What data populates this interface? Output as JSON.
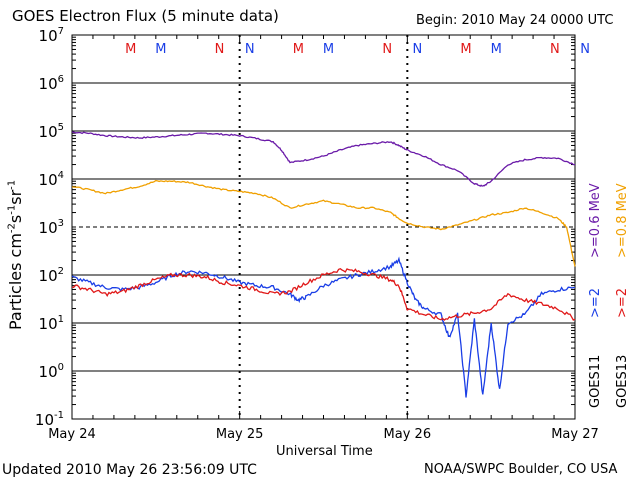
{
  "header": {
    "title": "GOES Electron Flux (5 minute data)",
    "begin": "Begin: 2010 May 24 0000 UTC"
  },
  "footer": {
    "updated": "Updated 2010 May 26 23:56:09 UTC",
    "credit": "NOAA/SWPC Boulder, CO USA"
  },
  "colors": {
    "goes11_e2": "#1a3ee6",
    "goes13_e2": "#e01818",
    "goes11_e06": "#6a1aa8",
    "goes13_e08": "#f0a000",
    "marker_m": "#e01818",
    "marker_n": "#1a3ee6"
  },
  "markers": [
    {
      "day": 0.35,
      "label": "M",
      "color": "marker_m"
    },
    {
      "day": 0.53,
      "label": "M",
      "color": "marker_n"
    },
    {
      "day": 0.88,
      "label": "N",
      "color": "marker_m"
    },
    {
      "day": 1.06,
      "label": "N",
      "color": "marker_n"
    },
    {
      "day": 1.35,
      "label": "M",
      "color": "marker_m"
    },
    {
      "day": 1.53,
      "label": "M",
      "color": "marker_n"
    },
    {
      "day": 1.88,
      "label": "N",
      "color": "marker_m"
    },
    {
      "day": 2.06,
      "label": "N",
      "color": "marker_n"
    },
    {
      "day": 2.35,
      "label": "M",
      "color": "marker_m"
    },
    {
      "day": 2.53,
      "label": "M",
      "color": "marker_n"
    },
    {
      "day": 2.88,
      "label": "N",
      "color": "marker_m"
    },
    {
      "day": 3.06,
      "label": "N",
      "color": "marker_n"
    }
  ],
  "chart_data": {
    "type": "line",
    "title": "GOES Electron Flux (5 minute data)",
    "xlabel": "Universal Time",
    "ylabel": "Particles cm-2 s-1 sr-1",
    "ylabel_parts": {
      "base": "Particles cm",
      "e1": "-2",
      "s": "s",
      "e2": "-1",
      "sr": "sr",
      "e3": "-1"
    },
    "y_scale": "log",
    "ylim": [
      0.1,
      10000000
    ],
    "xlim": [
      0,
      3
    ],
    "x_ticks": [
      {
        "x": 0,
        "label": "May 24"
      },
      {
        "x": 1,
        "label": "May 25"
      },
      {
        "x": 2,
        "label": "May 26"
      },
      {
        "x": 3,
        "label": "May 27"
      }
    ],
    "y_ticks": [
      {
        "exp": 7,
        "base": "10",
        "sup": "7"
      },
      {
        "exp": 6,
        "base": "10",
        "sup": "6"
      },
      {
        "exp": 5,
        "base": "10",
        "sup": "5"
      },
      {
        "exp": 4,
        "base": "10",
        "sup": "4"
      },
      {
        "exp": 3,
        "base": "10",
        "sup": "3"
      },
      {
        "exp": 2,
        "base": "10",
        "sup": "2"
      },
      {
        "exp": 1,
        "base": "10",
        "sup": "1"
      },
      {
        "exp": 0,
        "base": "10",
        "sup": "0"
      },
      {
        "exp": -1,
        "base": "10",
        "sup": "-1"
      }
    ],
    "grid": "horizontal solid at decades; dashed at 10^3",
    "legend_right": [
      {
        "text": "GOES11",
        "color": "#000000"
      },
      {
        "text": "GOES13",
        "color": "#000000"
      },
      {
        "text": ">=2",
        "color": "#1a3ee6"
      },
      {
        "text": ">=2",
        "color": "#e01818"
      },
      {
        "text": ">=0.6 MeV",
        "color": "#6a1aa8"
      },
      {
        "text": ">=0.8 MeV",
        "color": "#f0a000"
      }
    ],
    "series": [
      {
        "name": "GOES11 >=0.6 MeV",
        "color": "goes11_e06",
        "x": [
          0,
          0.1,
          0.2,
          0.3,
          0.4,
          0.5,
          0.6,
          0.7,
          0.8,
          0.9,
          1.0,
          1.1,
          1.2,
          1.25,
          1.3,
          1.4,
          1.5,
          1.6,
          1.7,
          1.8,
          1.9,
          1.95,
          2.0,
          2.1,
          2.2,
          2.3,
          2.4,
          2.45,
          2.5,
          2.6,
          2.7,
          2.8,
          2.9,
          3.0
        ],
        "y": [
          95000,
          90000,
          80000,
          75000,
          72000,
          75000,
          80000,
          85000,
          90000,
          85000,
          80000,
          70000,
          60000,
          40000,
          22000,
          25000,
          30000,
          40000,
          50000,
          55000,
          60000,
          50000,
          40000,
          30000,
          20000,
          15000,
          8000,
          7000,
          9000,
          20000,
          25000,
          28000,
          27000,
          20000
        ]
      },
      {
        "name": "GOES13 >=0.8 MeV",
        "color": "goes13_e08",
        "x": [
          0,
          0.1,
          0.2,
          0.3,
          0.4,
          0.5,
          0.6,
          0.7,
          0.8,
          0.9,
          1.0,
          1.1,
          1.2,
          1.3,
          1.4,
          1.5,
          1.6,
          1.7,
          1.8,
          1.9,
          1.95,
          2.0,
          2.1,
          2.2,
          2.3,
          2.4,
          2.5,
          2.6,
          2.7,
          2.8,
          2.9,
          2.95,
          3.0
        ],
        "y": [
          7000,
          6000,
          5000,
          6000,
          7000,
          9000,
          9000,
          8500,
          7000,
          6000,
          5500,
          5000,
          4000,
          2500,
          3000,
          3500,
          3000,
          2500,
          2500,
          2000,
          1500,
          1200,
          1000,
          900,
          1100,
          1400,
          1800,
          2000,
          2500,
          2000,
          1500,
          1000,
          150
        ]
      },
      {
        "name": "GOES11 >=2",
        "color": "goes11_e2",
        "x": [
          0,
          0.1,
          0.2,
          0.3,
          0.4,
          0.5,
          0.6,
          0.7,
          0.8,
          0.9,
          1.0,
          1.1,
          1.2,
          1.3,
          1.35,
          1.4,
          1.5,
          1.6,
          1.7,
          1.8,
          1.9,
          1.95,
          2.0,
          2.05,
          2.1,
          2.2,
          2.25,
          2.3,
          2.35,
          2.4,
          2.45,
          2.5,
          2.55,
          2.6,
          2.7,
          2.8,
          2.9,
          3.0
        ],
        "y": [
          90,
          70,
          55,
          50,
          55,
          70,
          100,
          120,
          110,
          90,
          70,
          60,
          55,
          40,
          30,
          35,
          60,
          80,
          100,
          120,
          150,
          200,
          70,
          30,
          20,
          15,
          5,
          15,
          0.3,
          12,
          0.3,
          10,
          0.4,
          10,
          15,
          40,
          50,
          55
        ]
      },
      {
        "name": "GOES13 >=2",
        "color": "goes13_e2",
        "x": [
          0,
          0.1,
          0.2,
          0.3,
          0.4,
          0.5,
          0.6,
          0.7,
          0.8,
          0.9,
          1.0,
          1.1,
          1.2,
          1.3,
          1.4,
          1.5,
          1.6,
          1.7,
          1.8,
          1.9,
          1.95,
          2.0,
          2.1,
          2.2,
          2.3,
          2.4,
          2.5,
          2.6,
          2.7,
          2.8,
          2.9,
          3.0
        ],
        "y": [
          60,
          50,
          40,
          45,
          60,
          80,
          100,
          100,
          90,
          70,
          60,
          50,
          40,
          45,
          70,
          100,
          130,
          120,
          100,
          80,
          60,
          20,
          15,
          12,
          14,
          16,
          20,
          40,
          30,
          25,
          20,
          12
        ]
      }
    ]
  }
}
